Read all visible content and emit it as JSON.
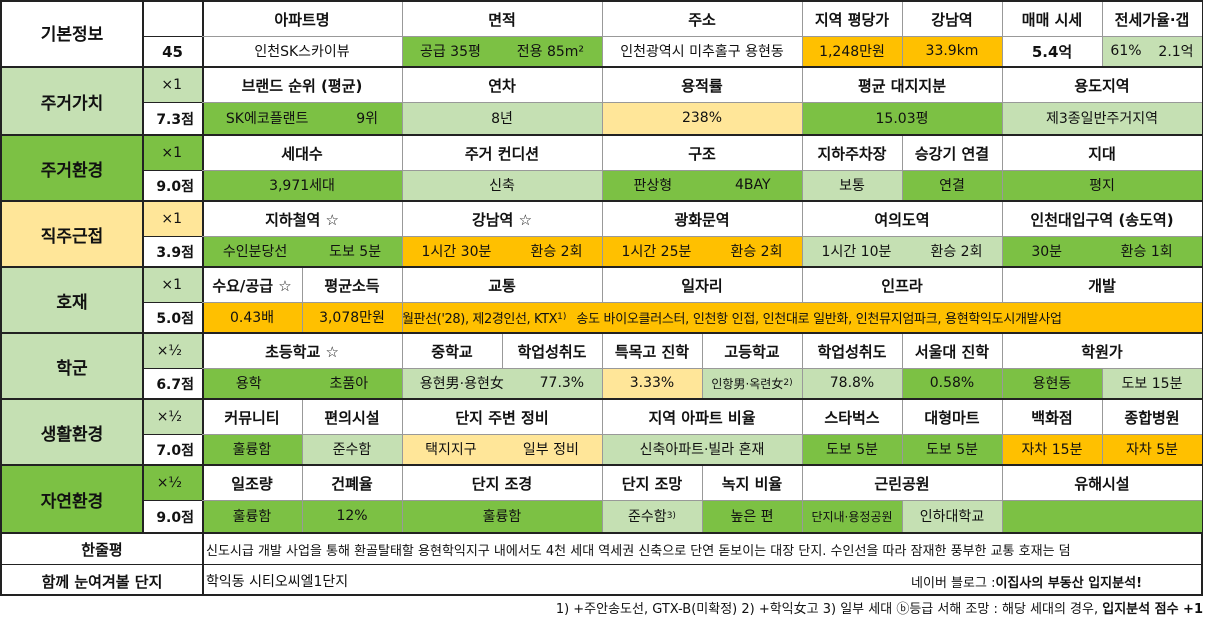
{
  "colors": {
    "dark": "#7cc144",
    "light": "#c5e0b3",
    "lightest": "#e2efd9",
    "yellow": "#ffc000",
    "pale": "#ffe699",
    "white": "#ffffff"
  },
  "basic": {
    "label": "기본정보",
    "score": "45",
    "headers": [
      "아파트명",
      "면적",
      "주소",
      "지역 평당가",
      "강남역",
      "매매 시세",
      "전세가율·갭"
    ],
    "name": "인천SK스카이뷰",
    "area_supply": "공급 35평",
    "area_use": "전용 85m²",
    "address": "인천광역시 미추홀구 용현동",
    "price_per_pyeong": "1,248만원",
    "gangnam_dist": "33.9km",
    "sale_price": "5.4억",
    "jeonse_rate": "61%",
    "gap": "2.1억"
  },
  "rows": [
    {
      "label": "주거가치",
      "mult": "×1",
      "score": "7.3점",
      "headers": [
        "브랜드 순위 (평균)",
        "연차",
        "용적률",
        "평균 대지지분",
        "용도지역"
      ],
      "values": [
        "SK에코플랜트",
        "9위",
        "8년",
        "238%",
        "15.03평",
        "제3종일반주거지역"
      ]
    },
    {
      "label": "주거환경",
      "mult": "×1",
      "score": "9.0점",
      "headers": [
        "세대수",
        "주거 컨디션",
        "구조",
        "지하주차장",
        "승강기 연결",
        "지대"
      ],
      "values": [
        "3,971세대",
        "신축",
        "판상형",
        "4BAY",
        "보통",
        "연결",
        "평지"
      ]
    },
    {
      "label": "직주근접",
      "mult": "×1",
      "score": "3.9점",
      "headers": [
        "지하철역 ☆",
        "강남역 ☆",
        "광화문역",
        "여의도역",
        "인천대입구역 (송도역)"
      ],
      "values": [
        "수인분당선",
        "도보 5분",
        "1시간 30분",
        "환승 2회",
        "1시간 25분",
        "환승 2회",
        "1시간 10분",
        "환승 2회",
        "30분",
        "환승 1회"
      ]
    },
    {
      "label": "호재",
      "mult": "×1",
      "score": "5.0점",
      "headers": [
        "수요/공급 ☆",
        "평균소득",
        "교통",
        "일자리",
        "인프라",
        "개발"
      ],
      "values": [
        "0.43배",
        "3,078만원",
        "월판선('28), 제2경인선, KTX",
        "1)",
        "송도 바이오클러스터, 인천항 인접, 인천대로 일반화, 인천뮤지엄파크, 용현학익도시개발사업"
      ]
    },
    {
      "label": "학군",
      "mult": "×½",
      "score": "6.7점",
      "headers": [
        "초등학교 ☆",
        "중학교",
        "학업성취도",
        "특목고 진학",
        "고등학교",
        "학업성취도",
        "서울대 진학",
        "학원가"
      ],
      "values": [
        "용학",
        "초품아",
        "용현男·용현女",
        "77.3%",
        "3.33%",
        "인항男·옥련女",
        "2)",
        "78.8%",
        "0.58%",
        "용현동",
        "도보 15분"
      ]
    },
    {
      "label": "생활환경",
      "mult": "×½",
      "score": "7.0점",
      "headers": [
        "커뮤니티",
        "편의시설",
        "단지 주변 정비",
        "지역 아파트 비율",
        "스타벅스",
        "대형마트",
        "백화점",
        "종합병원"
      ],
      "values": [
        "훌륭함",
        "준수함",
        "택지지구",
        "일부 정비",
        "신축아파트·빌라 혼재",
        "도보 5분",
        "도보 5분",
        "자차 15분",
        "자차 5분"
      ]
    },
    {
      "label": "자연환경",
      "mult": "×½",
      "score": "9.0점",
      "headers": [
        "일조량",
        "건폐율",
        "단지 조경",
        "단지 조망",
        "녹지 비율",
        "근린공원",
        "유해시설"
      ],
      "values": [
        "훌륭함",
        "12%",
        "훌륭함",
        "준수함",
        "3)",
        "높은 편",
        "단지내·용정공원",
        "인하대학교",
        ""
      ]
    }
  ],
  "summary": {
    "label": "한줄평",
    "text": "신도시급 개발 사업을 통해 환골탈태할 용현학익지구 내에서도 4천 세대 역세권 신축으로 단연 돋보이는 대장 단지. 수인선을 따라 잠재한 풍부한 교통 호재는 덤"
  },
  "compare": {
    "label": "함께 눈여겨볼 단지",
    "text": "학익동 시티오씨엘1단지",
    "blog_prefix": "네이버 블로그 : ",
    "blog_name": "이집사의 부동산 입지분석!"
  },
  "footnote": {
    "text": "1) +주안송도선, GTX-B(미확정)  2) +학익女고  3) 일부 세대 ⓑ등급 서해 조망 : 해당 세대의 경우, ",
    "bold": "입지분석 점수 +1"
  }
}
